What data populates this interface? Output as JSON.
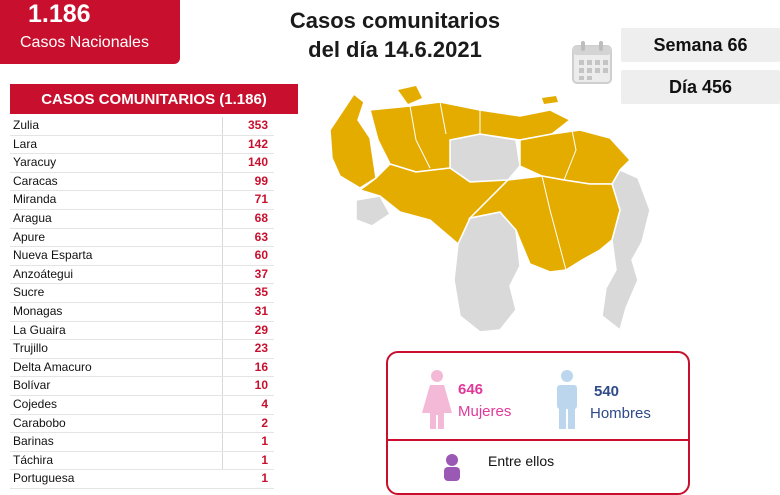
{
  "header": {
    "total": "1.186",
    "total_label": "Casos Nacionales",
    "title_line1": "Casos comunitarios",
    "title_line2": "del día 14.6.2021",
    "week": "Semana 66",
    "day": "Día 456"
  },
  "table": {
    "heading": "CASOS COMUNITARIOS (1.186)",
    "rows": [
      {
        "state": "Zulia",
        "cases": "353"
      },
      {
        "state": "Lara",
        "cases": "142"
      },
      {
        "state": "Yaracuy",
        "cases": "140"
      },
      {
        "state": "Caracas",
        "cases": "99"
      },
      {
        "state": "Miranda",
        "cases": "71"
      },
      {
        "state": "Aragua",
        "cases": "68"
      },
      {
        "state": "Apure",
        "cases": "63"
      },
      {
        "state": "Nueva Esparta",
        "cases": "60"
      },
      {
        "state": "Anzoátegui",
        "cases": "37"
      },
      {
        "state": "Sucre",
        "cases": "35"
      },
      {
        "state": "Monagas",
        "cases": "31"
      },
      {
        "state": "La Guaira",
        "cases": "29"
      },
      {
        "state": "Trujillo",
        "cases": "23"
      },
      {
        "state": "Delta Amacuro",
        "cases": "16"
      },
      {
        "state": "Bolívar",
        "cases": "10"
      },
      {
        "state": "Cojedes",
        "cases": "4"
      },
      {
        "state": "Carabobo",
        "cases": "2"
      },
      {
        "state": "Barinas",
        "cases": "1"
      },
      {
        "state": "Táchira",
        "cases": "1"
      },
      {
        "state": "Portuguesa",
        "cases": "1"
      }
    ]
  },
  "gender": {
    "women_count": "646",
    "women_label": "Mujeres",
    "men_count": "540",
    "men_label": "Hombres",
    "note": "Entre ellos",
    "women_color": "#e0399a",
    "men_color": "#2e4a8a"
  },
  "map": {
    "affected_color": "#e5ac00",
    "unaffected_color": "#d9d9d9"
  },
  "icons": [
    "calendar-icon",
    "woman-icon",
    "man-icon"
  ]
}
